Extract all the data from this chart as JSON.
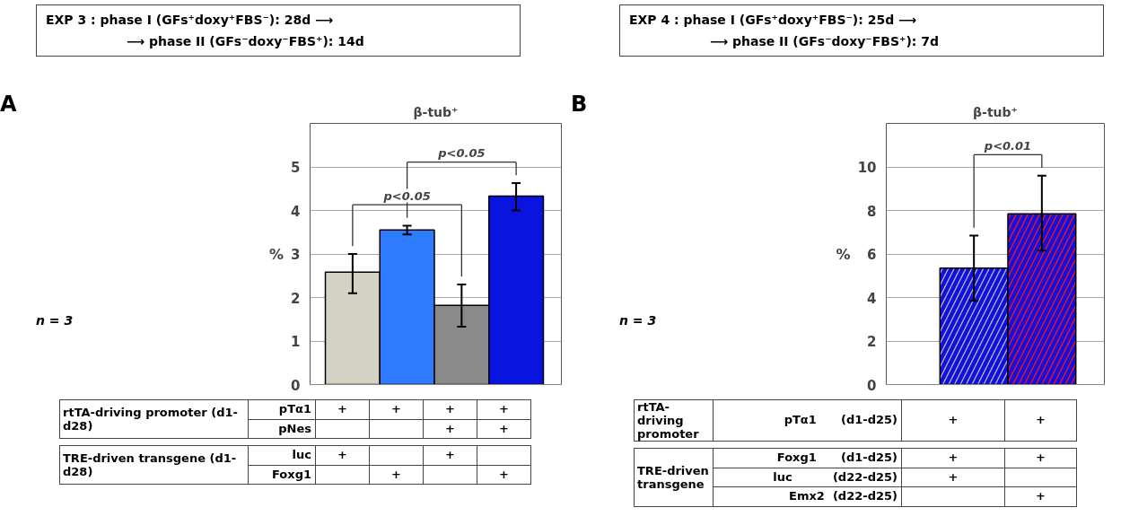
{
  "chart_data": [
    {
      "type": "bar",
      "title": "β-tub⁺",
      "ylabel": "%",
      "categories": [
        null,
        null,
        null,
        null
      ],
      "values": [
        2.58,
        3.55,
        1.82,
        4.33
      ],
      "colors": [
        "#d4d2c4",
        "#2f7bff",
        "#8a8a8a",
        "#0a14e0"
      ],
      "errors": [
        [
          2.1,
          3.0
        ],
        [
          3.45,
          3.65
        ],
        [
          1.33,
          2.3
        ],
        [
          4.0,
          4.63
        ]
      ],
      "ylim": [
        0,
        6
      ],
      "yticks": [
        0,
        1,
        2,
        3,
        4,
        5
      ],
      "grid": "y",
      "tick_labels": "y",
      "annotations": [
        "A",
        "EXP 3 :  phase I (GFs⁺doxy⁺FBS⁻): 28d ⟶",
        "⟶ phase II (GFs⁻doxy⁻FBS⁺): 14d",
        "n = 3",
        "p<0.05",
        "p<0.05",
        "rtTA-driving promoter (d1-d28)",
        "pTα1",
        "+",
        "+",
        "+",
        "+",
        "pNes",
        "+",
        "+",
        "TRE-driven transgene (d1-d28)",
        "luc",
        "+",
        "+",
        "Foxg1",
        "+",
        "+"
      ]
    },
    {
      "type": "bar",
      "title": "β-tub⁺",
      "ylabel": "%",
      "categories": [
        null,
        null
      ],
      "values": [
        5.35,
        7.85
      ],
      "colors": [
        "#b4b4ac",
        "#ff1010"
      ],
      "errors": [
        [
          3.85,
          6.85
        ],
        [
          6.15,
          9.6
        ]
      ],
      "ylim": [
        0,
        12
      ],
      "yticks": [
        0,
        2,
        4,
        6,
        8,
        10
      ],
      "grid": "y",
      "tick_labels": "y",
      "annotations": [
        "B",
        "EXP 4 :  phase I (GFs⁺doxy⁺FBS⁻): 25d ⟶",
        "⟶ phase II (GFs⁻doxy⁻FBS⁺): 7d",
        "n = 3",
        "p<0.01",
        "rtTA-driving promoter",
        "pTα1      (d1-d25)",
        "+",
        "+",
        "TRE-driven transgene",
        "Foxg1      (d1-d25)",
        "+",
        "+",
        "luc          (d22-d25)",
        "+",
        "Emx2  (d22-d25)",
        "+"
      ]
    }
  ]
}
